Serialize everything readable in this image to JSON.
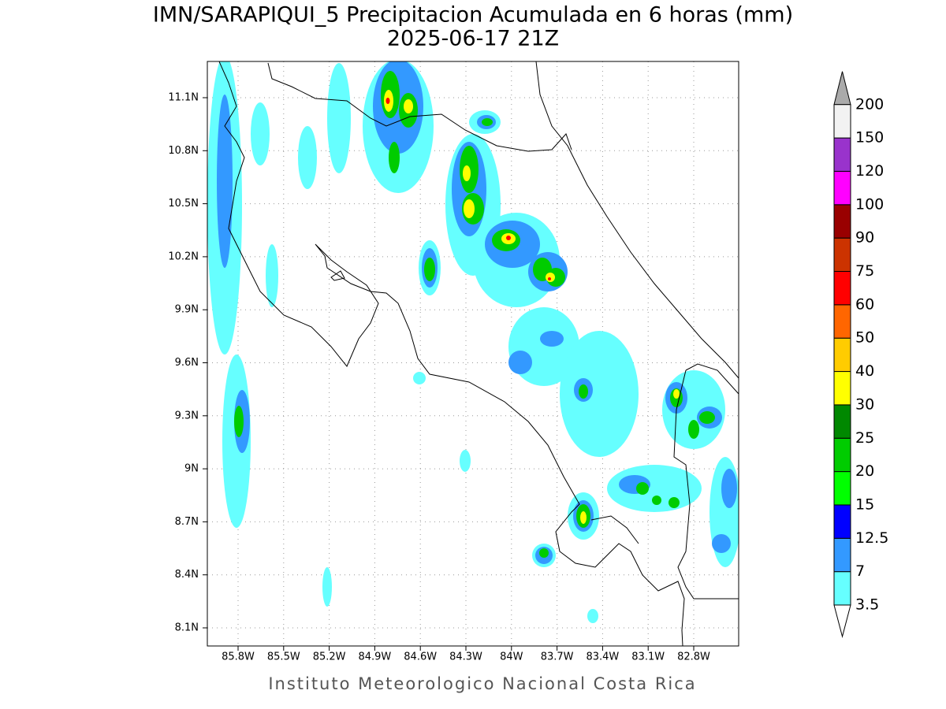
{
  "header": {
    "title": "IMN/SARAPIQUI_5 Precipitacion Acumulada en 6 horas (mm)",
    "subtitle": "2025-06-17 21Z"
  },
  "map": {
    "lon_ticks": [
      "85.8W",
      "85.5W",
      "85.2W",
      "84.9W",
      "84.6W",
      "84.3W",
      "84W",
      "83.7W",
      "83.4W",
      "83.1W",
      "82.8W"
    ],
    "lat_ticks": [
      "11.1N",
      "10.8N",
      "10.5N",
      "10.2N",
      "9.9N",
      "9.6N",
      "9.3N",
      "9N",
      "8.7N",
      "8.4N",
      "8.1N"
    ]
  },
  "colorbar": {
    "levels": [
      3.5,
      7,
      12.5,
      15,
      20,
      25,
      30,
      40,
      50,
      60,
      75,
      90,
      100,
      120,
      150,
      200
    ],
    "colors": [
      "#66ffff",
      "#3399ff",
      "#0000ff",
      "#00ff00",
      "#00cc00",
      "#008800",
      "#ffff00",
      "#ffcc00",
      "#ff6600",
      "#ff0000",
      "#cc3300",
      "#990000",
      "#ff00ff",
      "#9933cc",
      "#f2f2f2"
    ],
    "under_color": "#ffffff",
    "over_color": "#aaaaaa"
  },
  "footer": "Instituto Meteorologico Nacional Costa Rica"
}
